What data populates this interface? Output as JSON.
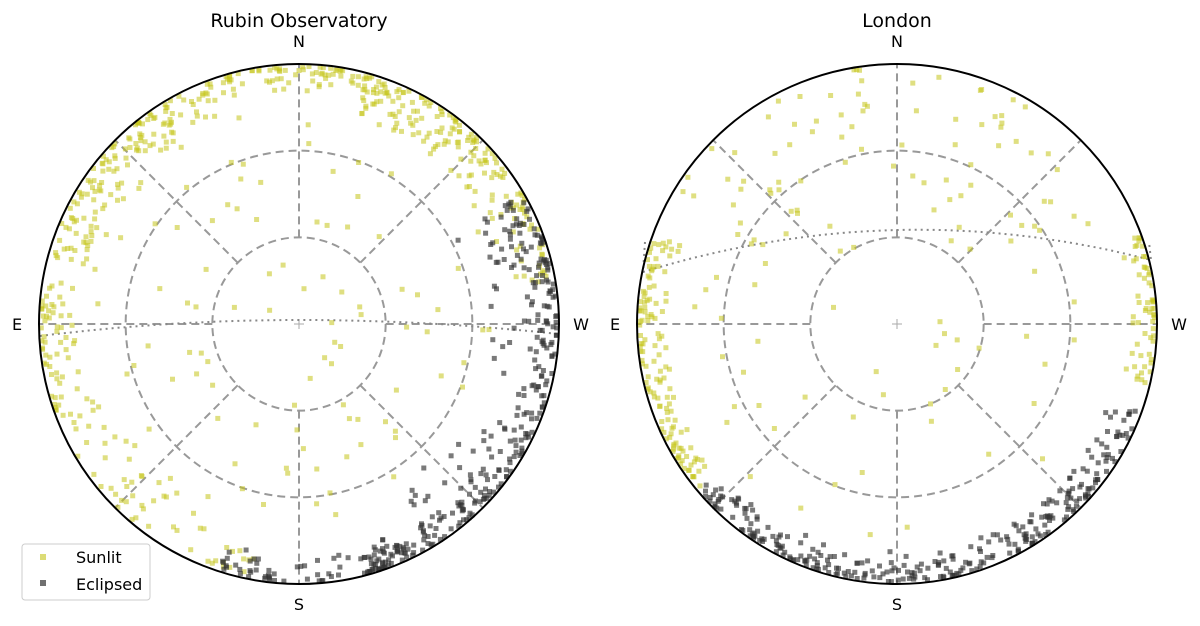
{
  "chart_data": [
    {
      "type": "scatter",
      "projection": "polar-sky",
      "title": "Rubin Observatory",
      "direction_labels": {
        "north": "N",
        "south": "S",
        "east": "E",
        "west": "W"
      },
      "grid": true,
      "terminator": "dotted-line-near-horizon-east-west",
      "series": [
        {
          "name": "Sunlit",
          "color": "#c4c41a",
          "marker": "square",
          "regions": [
            {
              "az": [
                15,
                75
              ],
              "zen": [
                72,
                90
              ],
              "count": 150
            },
            {
              "az": [
                280,
                345
              ],
              "zen": [
                72,
                90
              ],
              "count": 170
            },
            {
              "az": [
                340,
                20
              ],
              "zen": [
                80,
                90
              ],
              "count": 70
            },
            {
              "az": [
                80,
                110
              ],
              "zen": [
                76,
                90
              ],
              "count": 60
            },
            {
              "az": [
                110,
                170
              ],
              "zen": [
                70,
                90
              ],
              "count": 60
            },
            {
              "az": [
                0,
                360
              ],
              "zen": [
                5,
                70
              ],
              "count": 90
            }
          ]
        },
        {
          "name": "Eclipsed",
          "color": "#333333",
          "marker": "square",
          "regions": [
            {
              "az": [
                195,
                300
              ],
              "zen": [
                78,
                90
              ],
              "count": 250
            },
            {
              "az": [
                160,
                205
              ],
              "zen": [
                78,
                90
              ],
              "count": 70
            },
            {
              "az": [
                210,
                300
              ],
              "zen": [
                60,
                80
              ],
              "count": 50
            }
          ]
        }
      ]
    },
    {
      "type": "scatter",
      "projection": "polar-sky",
      "title": "London",
      "direction_labels": {
        "north": "N",
        "south": "S",
        "east": "E",
        "west": "W"
      },
      "grid": true,
      "terminator": "dotted-line-north-of-zenith",
      "series": [
        {
          "name": "Sunlit",
          "color": "#c4c41a",
          "marker": "square",
          "regions": [
            {
              "az": [
                70,
                130
              ],
              "zen": [
                78,
                90
              ],
              "count": 130
            },
            {
              "az": [
                255,
                290
              ],
              "zen": [
                80,
                90
              ],
              "count": 60
            },
            {
              "az": [
                300,
                60
              ],
              "zen": [
                40,
                90
              ],
              "count": 60
            },
            {
              "az": [
                0,
                360
              ],
              "zen": [
                5,
                75
              ],
              "count": 70
            }
          ]
        },
        {
          "name": "Eclipsed",
          "color": "#333333",
          "marker": "square",
          "regions": [
            {
              "az": [
                130,
                235
              ],
              "zen": [
                78,
                90
              ],
              "count": 260
            },
            {
              "az": [
                235,
                250
              ],
              "zen": [
                76,
                90
              ],
              "count": 30
            }
          ]
        }
      ]
    }
  ],
  "legend": {
    "placement": "bottom-left",
    "entries": [
      {
        "label": "Sunlit",
        "color": "#c4c41a"
      },
      {
        "label": "Eclipsed",
        "color": "#333333"
      }
    ]
  }
}
